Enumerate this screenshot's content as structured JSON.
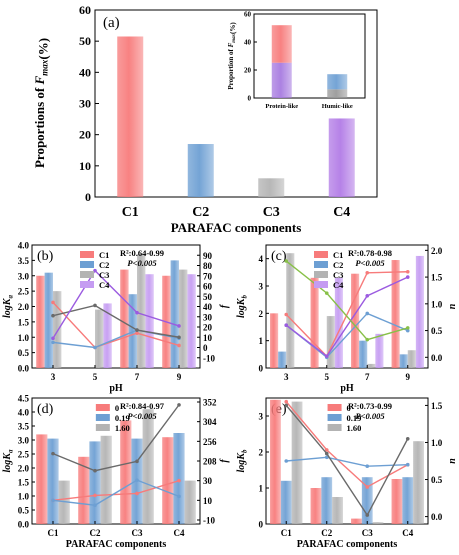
{
  "chart_data": [
    {
      "panel_label": "(a)",
      "type": "bar",
      "xlabel": "PARAFAC components",
      "ylabel": "Proportions of F_max(%)",
      "categories": [
        "C1",
        "C2",
        "C3",
        "C4"
      ],
      "values": [
        51.5,
        17.0,
        6.0,
        25.2
      ],
      "colors": [
        "#f77b7b",
        "#6d9fd3",
        "#b3b3b3",
        "#b27be6"
      ],
      "ylim": [
        0,
        60
      ],
      "yticks": [
        0,
        10,
        20,
        30,
        40,
        50,
        60
      ],
      "inset": {
        "type": "stacked-bar",
        "ylabel": "Proportion of F_max(%)",
        "categories": [
          "Protein-like",
          "Humic-like"
        ],
        "ylim": [
          0,
          60
        ],
        "yticks": [
          0,
          20,
          40,
          60
        ],
        "stacks": [
          [
            {
              "component": "C4",
              "value": 25.2,
              "color": "#a77be0"
            },
            {
              "component": "C1",
              "value": 26.8,
              "color": "#f77b7b"
            }
          ],
          [
            {
              "component": "C3",
              "value": 6.2,
              "color": "#9a9a9a"
            },
            {
              "component": "C2",
              "value": 10.8,
              "color": "#6d9fd3"
            }
          ]
        ]
      }
    },
    {
      "panel_label": "(b)",
      "type": "bar+line",
      "annotation": [
        "R²:0.64-0.99",
        "P<0.005"
      ],
      "xlabel": "pH",
      "ylabel_left": "logK_a",
      "ylabel_right": "f",
      "categories": [
        "3",
        "5",
        "7",
        "9"
      ],
      "ylim_left": [
        0,
        4.0
      ],
      "yticks_left": [
        0,
        0.5,
        1.0,
        1.5,
        2.0,
        2.5,
        3.0,
        3.5,
        4.0
      ],
      "ylim_right": [
        -20,
        100
      ],
      "yticks_right": [
        -10,
        0,
        10,
        20,
        30,
        40,
        50,
        60,
        70,
        80,
        90
      ],
      "series": [
        {
          "name": "C1",
          "color": "#f77b7b",
          "bars": [
            3.0,
            null,
            3.2,
            3.0
          ],
          "line": [
            44,
            0,
            14,
            2
          ]
        },
        {
          "name": "C2",
          "color": "#6d9fd3",
          "bars": [
            3.1,
            null,
            2.4,
            3.5
          ],
          "line": [
            5,
            0,
            17,
            9
          ]
        },
        {
          "name": "C3",
          "color": "#b3b3b3",
          "bars": [
            2.5,
            1.9,
            3.7,
            3.2
          ],
          "line": [
            31,
            41,
            17,
            10
          ]
        },
        {
          "name": "C4",
          "color": "#c59cf2",
          "bars": [
            null,
            2.1,
            3.05,
            3.05
          ],
          "line": [
            9,
            75,
            34,
            21
          ]
        }
      ],
      "legend_position": "top-left"
    },
    {
      "panel_label": "(c)",
      "type": "bar+line",
      "annotation": [
        "R²:0.78-0.98",
        "P<0.005"
      ],
      "xlabel": "pH",
      "ylabel_left": "logK_b",
      "ylabel_right": "n",
      "categories": [
        "3",
        "5",
        "7",
        "9"
      ],
      "ylim_left": [
        0,
        4.5
      ],
      "yticks_left": [
        0,
        1,
        2,
        3,
        4
      ],
      "ylim_right": [
        -0.2,
        2.1
      ],
      "yticks_right": [
        0.0,
        0.5,
        1.0,
        1.5,
        2.0
      ],
      "series": [
        {
          "name": "C1",
          "color": "#f77b7b",
          "bars": [
            2.0,
            3.3,
            3.45,
            3.95
          ],
          "line": [
            0.8,
            0.02,
            1.58,
            1.6
          ]
        },
        {
          "name": "C2",
          "color": "#6d9fd3",
          "bars": [
            0.6,
            null,
            1.0,
            0.5
          ],
          "line": [
            0.6,
            0.0,
            0.82,
            0.5
          ]
        },
        {
          "name": "C3",
          "color": "#b3b3b3",
          "bars": [
            4.2,
            1.9,
            0.15,
            0.65
          ],
          "line": [
            null,
            null,
            null,
            null
          ]
        },
        {
          "name": "C4",
          "color": "#c59cf2",
          "bars": [
            null,
            3.3,
            1.25,
            4.1
          ],
          "line": [
            0.6,
            0.02,
            1.15,
            1.5
          ]
        },
        {
          "name": "",
          "color": "#88c048",
          "bars": [
            null,
            null,
            null,
            null
          ],
          "line": [
            1.8,
            1.2,
            0.33,
            0.55
          ]
        }
      ],
      "legend_position": "top-left"
    },
    {
      "panel_label": "(d)",
      "type": "bar+line",
      "annotation": [
        "R²:0.84-0.97",
        "P<0.005"
      ],
      "xlabel": "PARAFAC components",
      "ylabel_left": "logK_a",
      "ylabel_right": "f",
      "categories": [
        "C1",
        "C2",
        "C3",
        "C4"
      ],
      "ylim_left": [
        0,
        4.5
      ],
      "yticks_left": [
        0,
        0.5,
        1.0,
        1.5,
        2.0,
        2.5,
        3.0,
        3.5,
        4.0,
        4.5
      ],
      "ylim_right": [
        -10,
        360
      ],
      "yticks_right": [
        -10,
        10,
        30,
        208,
        256,
        304,
        352
      ],
      "series": [
        {
          "name": "0",
          "color": "#f77b7b",
          "bars": [
            3.2,
            2.4,
            3.7,
            3.1
          ],
          "line": [
            10,
            15,
            17,
            30
          ]
        },
        {
          "name": "0.19",
          "color": "#6d9fd3",
          "bars": [
            3.05,
            2.95,
            3.05,
            3.25
          ],
          "line": [
            10,
            5,
            35,
            14
          ]
        },
        {
          "name": "1.60",
          "color": "#b3b3b3",
          "bars": [
            1.55,
            3.15,
            4.1,
            1.55
          ],
          "line": [
            226,
            120,
            205,
            345
          ]
        }
      ],
      "legend_position": "top-center"
    },
    {
      "panel_label": "(e)",
      "type": "bar+line",
      "annotation": [
        "R²:0.73-0.99",
        "P<0.005"
      ],
      "xlabel": "PARAFAC components",
      "ylabel_left": "logK_b",
      "ylabel_right": "n",
      "categories": [
        "C1",
        "C2",
        "C3",
        "C4"
      ],
      "ylim_left": [
        0,
        3.5
      ],
      "yticks_left": [
        0,
        1,
        2,
        3
      ],
      "ylim_right": [
        -0.1,
        1.6
      ],
      "yticks_right": [
        0.0,
        0.5,
        1.0,
        1.5
      ],
      "series": [
        {
          "name": "0",
          "color": "#f77b7b",
          "bars": [
            3.45,
            1.0,
            0.15,
            1.25
          ],
          "line": [
            1.55,
            0.9,
            0.4,
            0.7
          ]
        },
        {
          "name": "0.19",
          "color": "#6d9fd3",
          "bars": [
            1.2,
            1.3,
            1.3,
            1.3
          ],
          "line": [
            0.75,
            0.8,
            0.68,
            0.7
          ]
        },
        {
          "name": "1.60",
          "color": "#b3b3b3",
          "bars": [
            3.4,
            0.75,
            0.05,
            2.3
          ],
          "line": [
            1.5,
            0.85,
            0.02,
            1.05
          ]
        }
      ],
      "legend_position": "top-center"
    }
  ]
}
